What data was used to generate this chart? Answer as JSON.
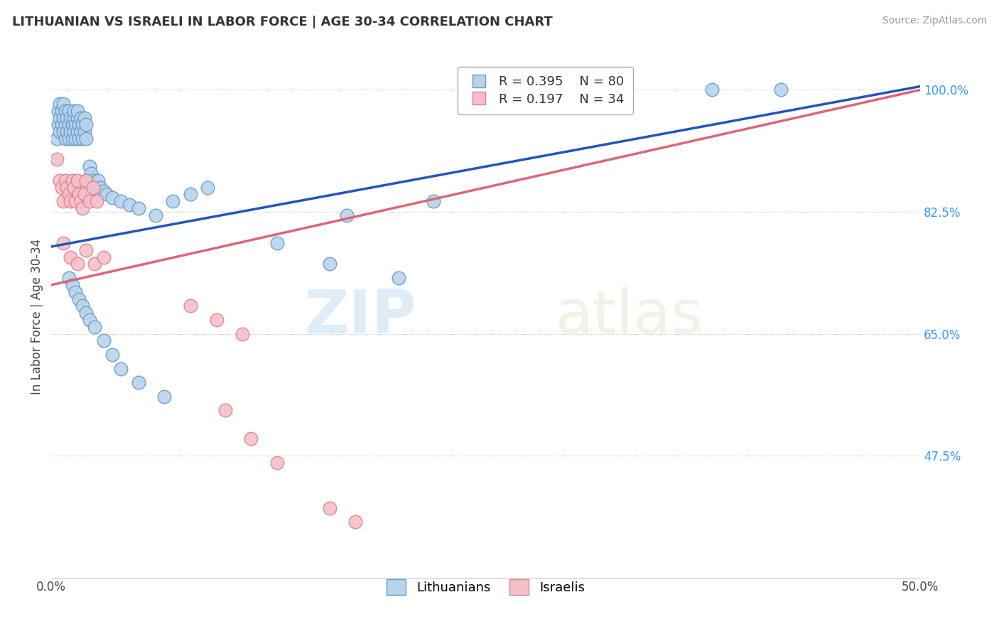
{
  "title": "LITHUANIAN VS ISRAELI IN LABOR FORCE | AGE 30-34 CORRELATION CHART",
  "source": "Source: ZipAtlas.com",
  "ylabel": "In Labor Force | Age 30-34",
  "xlim": [
    0.0,
    0.5
  ],
  "ylim": [
    0.3,
    1.05
  ],
  "yticks_right": [
    0.475,
    0.65,
    0.825,
    1.0
  ],
  "ytick_right_labels": [
    "47.5%",
    "65.0%",
    "82.5%",
    "100.0%"
  ],
  "legend_blue_r": "0.395",
  "legend_blue_n": "80",
  "legend_pink_r": "0.197",
  "legend_pink_n": "34",
  "legend_labels": [
    "Lithuanians",
    "Israelis"
  ],
  "blue_color": "#b8d4eb",
  "blue_edge": "#6699cc",
  "pink_color": "#f5c0c8",
  "pink_edge": "#dd8090",
  "blue_line_color": "#2255bb",
  "pink_line_color": "#dd6677",
  "grid_color": "#bbbbbb",
  "background_color": "#ffffff",
  "watermark_zip": "ZIP",
  "watermark_atlas": "atlas",
  "blue_x": [
    0.003,
    0.004,
    0.004,
    0.005,
    0.005,
    0.005,
    0.006,
    0.006,
    0.007,
    0.007,
    0.007,
    0.008,
    0.008,
    0.008,
    0.009,
    0.009,
    0.01,
    0.01,
    0.01,
    0.011,
    0.011,
    0.012,
    0.012,
    0.013,
    0.013,
    0.013,
    0.014,
    0.014,
    0.015,
    0.015,
    0.015,
    0.016,
    0.016,
    0.017,
    0.017,
    0.018,
    0.018,
    0.019,
    0.019,
    0.02,
    0.02,
    0.021,
    0.022,
    0.022,
    0.023,
    0.024,
    0.025,
    0.026,
    0.027,
    0.028,
    0.03,
    0.032,
    0.035,
    0.04,
    0.045,
    0.05,
    0.06,
    0.07,
    0.08,
    0.09,
    0.01,
    0.012,
    0.014,
    0.016,
    0.018,
    0.02,
    0.022,
    0.025,
    0.03,
    0.035,
    0.04,
    0.05,
    0.065,
    0.13,
    0.17,
    0.22,
    0.38,
    0.42,
    0.16,
    0.2
  ],
  "blue_y": [
    0.93,
    0.95,
    0.97,
    0.96,
    0.94,
    0.98,
    0.95,
    0.97,
    0.94,
    0.96,
    0.98,
    0.93,
    0.95,
    0.97,
    0.94,
    0.96,
    0.93,
    0.95,
    0.97,
    0.94,
    0.96,
    0.93,
    0.95,
    0.94,
    0.96,
    0.97,
    0.93,
    0.95,
    0.94,
    0.96,
    0.97,
    0.93,
    0.95,
    0.94,
    0.96,
    0.93,
    0.95,
    0.94,
    0.96,
    0.93,
    0.95,
    0.87,
    0.89,
    0.86,
    0.88,
    0.87,
    0.86,
    0.85,
    0.87,
    0.86,
    0.855,
    0.85,
    0.845,
    0.84,
    0.835,
    0.83,
    0.82,
    0.84,
    0.85,
    0.86,
    0.73,
    0.72,
    0.71,
    0.7,
    0.69,
    0.68,
    0.67,
    0.66,
    0.64,
    0.62,
    0.6,
    0.58,
    0.56,
    0.78,
    0.82,
    0.84,
    1.0,
    1.0,
    0.75,
    0.73
  ],
  "pink_x": [
    0.003,
    0.005,
    0.006,
    0.007,
    0.008,
    0.009,
    0.01,
    0.011,
    0.012,
    0.013,
    0.014,
    0.015,
    0.016,
    0.017,
    0.018,
    0.019,
    0.02,
    0.022,
    0.024,
    0.026,
    0.007,
    0.011,
    0.015,
    0.02,
    0.025,
    0.03,
    0.1,
    0.115,
    0.13,
    0.16,
    0.08,
    0.095,
    0.11,
    0.175
  ],
  "pink_y": [
    0.9,
    0.87,
    0.86,
    0.84,
    0.87,
    0.86,
    0.85,
    0.84,
    0.87,
    0.86,
    0.84,
    0.87,
    0.85,
    0.84,
    0.83,
    0.85,
    0.87,
    0.84,
    0.86,
    0.84,
    0.78,
    0.76,
    0.75,
    0.77,
    0.75,
    0.76,
    0.54,
    0.5,
    0.465,
    0.4,
    0.69,
    0.67,
    0.65,
    0.38
  ],
  "blue_trend_x": [
    0.0,
    0.5
  ],
  "blue_trend_y": [
    0.775,
    1.005
  ],
  "pink_trend_x": [
    0.0,
    0.5
  ],
  "pink_trend_y": [
    0.72,
    1.0
  ]
}
